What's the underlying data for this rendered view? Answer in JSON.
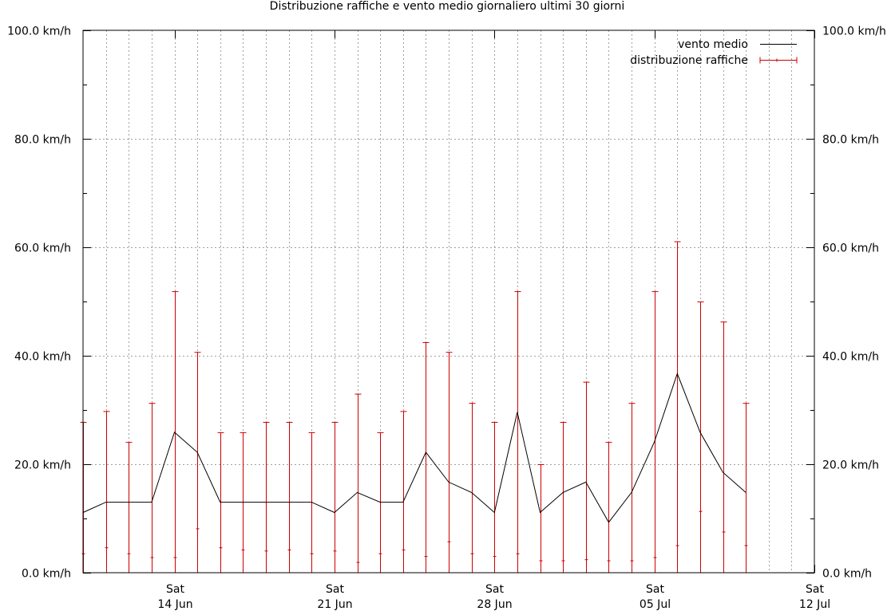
{
  "chart_data": {
    "type": "line",
    "title": "Distribuzione raffiche e vento medio giornaliero ultimi 30 giorni",
    "xlabel": "",
    "ylabel": "",
    "ylim": [
      0,
      100
    ],
    "grid": true,
    "legend_position": "top-right",
    "y_ticks": [
      "0.0 km/h",
      "20.0 km/h",
      "40.0 km/h",
      "60.0 km/h",
      "80.0 km/h",
      "100.0 km/h"
    ],
    "y_tick_values": [
      0,
      20,
      40,
      60,
      80,
      100
    ],
    "x_range": [
      "2025-06-10",
      "2025-07-11"
    ],
    "x_ticks": [
      {
        "date": "2025-06-14",
        "day": "Sat",
        "label": "14 Jun"
      },
      {
        "date": "2025-06-21",
        "day": "Sat",
        "label": "21 Jun"
      },
      {
        "date": "2025-06-28",
        "day": "Sat",
        "label": "28 Jun"
      },
      {
        "date": "2025-07-05",
        "day": "Sat",
        "label": "05 Jul"
      },
      {
        "date": "2025-07-12",
        "day": "Sat",
        "label": "12 Jul"
      }
    ],
    "colors": {
      "vento_medio": "#000000",
      "raffiche": "#cc0000",
      "grid": "#a0a0a0"
    },
    "series": [
      {
        "name": "vento medio",
        "style": "line",
        "x": [
          "2025-06-10",
          "2025-06-11",
          "2025-06-12",
          "2025-06-13",
          "2025-06-14",
          "2025-06-15",
          "2025-06-16",
          "2025-06-17",
          "2025-06-18",
          "2025-06-19",
          "2025-06-20",
          "2025-06-21",
          "2025-06-22",
          "2025-06-23",
          "2025-06-24",
          "2025-06-25",
          "2025-06-26",
          "2025-06-27",
          "2025-06-28",
          "2025-06-29",
          "2025-06-30",
          "2025-07-01",
          "2025-07-02",
          "2025-07-03",
          "2025-07-04",
          "2025-07-05",
          "2025-07-06",
          "2025-07-07",
          "2025-07-08",
          "2025-07-09",
          "2025-07-10",
          "2025-07-11"
        ],
        "values": [
          11.1,
          13.0,
          13.0,
          13.0,
          25.9,
          22.2,
          13.0,
          13.0,
          13.0,
          13.0,
          13.0,
          11.1,
          14.8,
          13.0,
          13.0,
          22.2,
          16.7,
          14.8,
          11.1,
          29.6,
          11.1,
          14.8,
          16.7,
          9.3,
          14.8,
          24.1,
          36.7,
          25.9,
          18.5,
          14.8,
          null,
          null
        ]
      },
      {
        "name": "distribuzione raffiche",
        "style": "errorbar",
        "x": [
          "2025-06-10",
          "2025-06-11",
          "2025-06-12",
          "2025-06-13",
          "2025-06-14",
          "2025-06-15",
          "2025-06-16",
          "2025-06-17",
          "2025-06-18",
          "2025-06-19",
          "2025-06-20",
          "2025-06-21",
          "2025-06-22",
          "2025-06-23",
          "2025-06-24",
          "2025-06-25",
          "2025-06-26",
          "2025-06-27",
          "2025-06-28",
          "2025-06-29",
          "2025-06-30",
          "2025-07-01",
          "2025-07-02",
          "2025-07-03",
          "2025-07-04",
          "2025-07-05",
          "2025-07-06",
          "2025-07-07",
          "2025-07-08",
          "2025-07-09",
          "2025-07-10"
        ],
        "low": [
          0,
          0,
          0,
          0,
          0,
          0,
          0,
          0,
          0,
          0,
          0,
          0,
          0,
          0,
          0,
          0,
          0,
          0,
          0,
          0,
          0,
          0,
          0,
          0,
          0,
          0,
          0,
          0,
          0,
          0,
          0
        ],
        "mid": [
          3.5,
          4.6,
          3.5,
          2.8,
          2.8,
          8.1,
          4.6,
          4.2,
          4.0,
          4.2,
          3.5,
          4.0,
          1.9,
          3.5,
          4.2,
          3.0,
          5.7,
          3.5,
          3.0,
          3.5,
          2.2,
          2.2,
          2.4,
          2.2,
          2.2,
          2.8,
          5.0,
          11.3,
          7.5,
          5.0,
          null
        ],
        "high": [
          27.8,
          29.8,
          24.1,
          31.3,
          51.9,
          40.7,
          25.9,
          25.9,
          27.8,
          27.8,
          25.9,
          27.8,
          33.0,
          25.9,
          29.8,
          42.5,
          40.7,
          31.3,
          27.8,
          51.9,
          20.0,
          27.8,
          35.2,
          24.1,
          31.3,
          51.9,
          61.1,
          50.0,
          46.3,
          31.3,
          null
        ]
      }
    ]
  }
}
